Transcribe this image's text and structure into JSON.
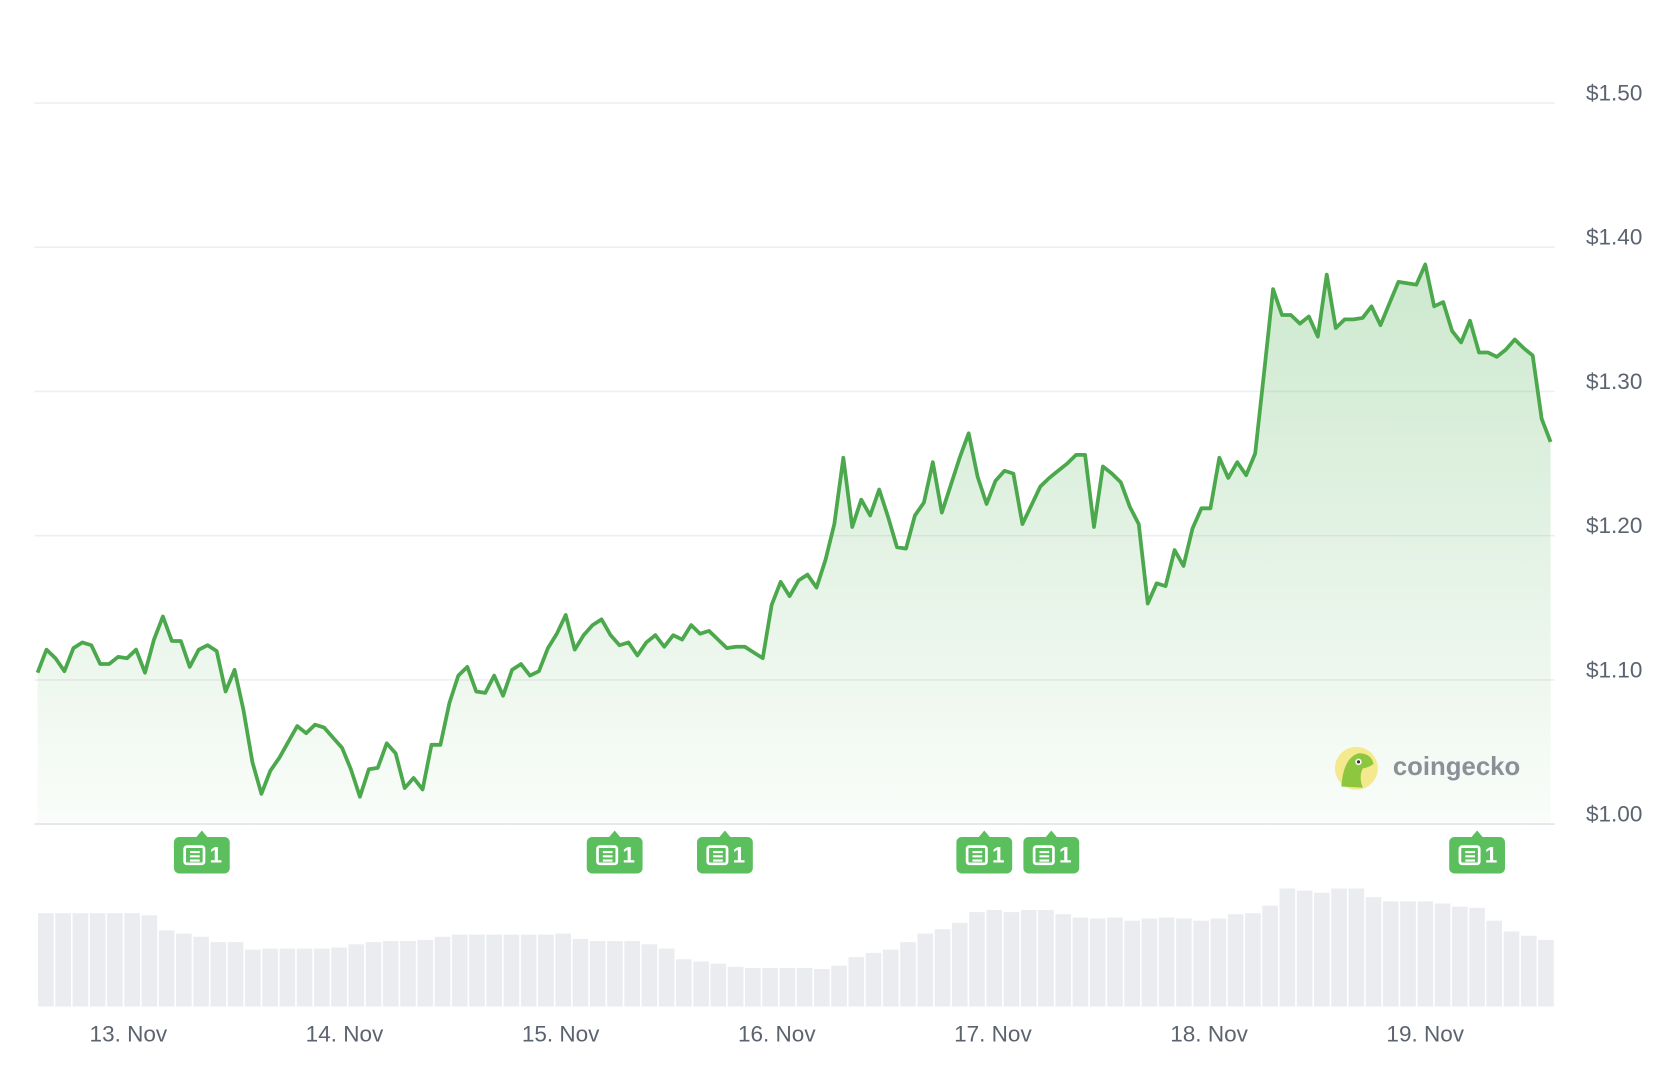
{
  "chart_data": {
    "type": "line",
    "area": true,
    "color": "#4ba84c",
    "grid": true,
    "xlim": [
      12.58,
      19.58
    ],
    "xticks": [
      {
        "value": 13,
        "label": "13. Nov"
      },
      {
        "value": 14,
        "label": "14. Nov"
      },
      {
        "value": 15,
        "label": "15. Nov"
      },
      {
        "value": 16,
        "label": "16. Nov"
      },
      {
        "value": 17,
        "label": "17. Nov"
      },
      {
        "value": 18,
        "label": "18. Nov"
      },
      {
        "value": 19,
        "label": "19. Nov"
      }
    ],
    "ylim": [
      1.0,
      1.5
    ],
    "yticks": [
      {
        "value": 1.0,
        "label": "$1.00"
      },
      {
        "value": 1.1,
        "label": "$1.10"
      },
      {
        "value": 1.2,
        "label": "$1.20"
      },
      {
        "value": 1.3,
        "label": "$1.30"
      },
      {
        "value": 1.4,
        "label": "$1.40"
      },
      {
        "value": 1.5,
        "label": "$1.50"
      }
    ],
    "values": [
      1.105,
      1.121,
      1.115,
      1.106,
      1.122,
      1.126,
      1.124,
      1.111,
      1.111,
      1.116,
      1.115,
      1.121,
      1.105,
      1.128,
      1.144,
      1.127,
      1.127,
      1.109,
      1.121,
      1.124,
      1.12,
      1.092,
      1.107,
      1.079,
      1.043,
      1.021,
      1.037,
      1.046,
      1.057,
      1.068,
      1.063,
      1.069,
      1.067,
      1.06,
      1.053,
      1.038,
      1.019,
      1.038,
      1.039,
      1.056,
      1.049,
      1.025,
      1.032,
      1.024,
      1.055,
      1.055,
      1.084,
      1.103,
      1.109,
      1.092,
      1.091,
      1.103,
      1.089,
      1.107,
      1.111,
      1.103,
      1.106,
      1.122,
      1.132,
      1.145,
      1.121,
      1.131,
      1.138,
      1.142,
      1.131,
      1.124,
      1.126,
      1.117,
      1.126,
      1.131,
      1.123,
      1.131,
      1.128,
      1.138,
      1.132,
      1.134,
      1.128,
      1.122,
      1.123,
      1.123,
      1.119,
      1.115,
      1.152,
      1.168,
      1.158,
      1.169,
      1.173,
      1.164,
      1.183,
      1.208,
      1.254,
      1.206,
      1.225,
      1.214,
      1.232,
      1.213,
      1.192,
      1.191,
      1.214,
      1.223,
      1.251,
      1.216,
      1.235,
      1.254,
      1.271,
      1.241,
      1.222,
      1.238,
      1.245,
      1.243,
      1.208,
      1.221,
      1.234,
      1.24,
      1.245,
      1.25,
      1.256,
      1.256,
      1.206,
      1.248,
      1.243,
      1.237,
      1.22,
      1.208,
      1.153,
      1.167,
      1.165,
      1.19,
      1.179,
      1.205,
      1.219,
      1.219,
      1.254,
      1.24,
      1.251,
      1.242,
      1.257,
      1.313,
      1.371,
      1.353,
      1.353,
      1.347,
      1.352,
      1.338,
      1.381,
      1.344,
      1.35,
      1.35,
      1.351,
      1.359,
      1.346,
      1.361,
      1.376,
      1.375,
      1.374,
      1.388,
      1.359,
      1.362,
      1.342,
      1.334,
      1.349,
      1.327,
      1.327,
      1.324,
      1.329,
      1.336,
      1.33,
      1.325,
      1.281,
      1.265
    ],
    "volume": {
      "color": "#ebecef",
      "ylim": [
        0,
        120
      ],
      "values": [
        87,
        87,
        87,
        87,
        87,
        87,
        85,
        71,
        68,
        65,
        60,
        60,
        53,
        54,
        54,
        54,
        54,
        55,
        58,
        60,
        61,
        61,
        62,
        65,
        67,
        67,
        67,
        67,
        67,
        67,
        68,
        63,
        61,
        61,
        61,
        58,
        54,
        44,
        42,
        40,
        37,
        36,
        36,
        36,
        36,
        35,
        38,
        46,
        50,
        53,
        60,
        68,
        72,
        78,
        88,
        90,
        88,
        90,
        90,
        86,
        83,
        82,
        83,
        80,
        82,
        83,
        82,
        80,
        82,
        86,
        87,
        94,
        110,
        108,
        106,
        110,
        110,
        102,
        98,
        98,
        98,
        96,
        93,
        92,
        80,
        70,
        66,
        62
      ]
    },
    "news": [
      {
        "x": 13.34,
        "count": 1
      },
      {
        "x": 15.25,
        "count": 1
      },
      {
        "x": 15.76,
        "count": 1
      },
      {
        "x": 16.96,
        "count": 1
      },
      {
        "x": 17.27,
        "count": 1
      },
      {
        "x": 19.24,
        "count": 1
      }
    ],
    "watermark": "coingecko"
  }
}
